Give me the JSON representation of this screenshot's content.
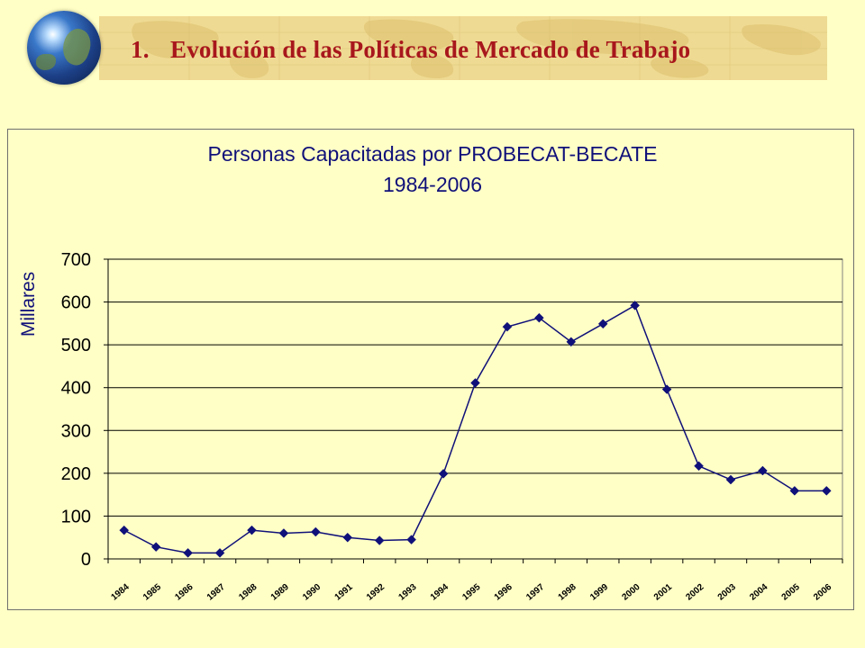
{
  "slide": {
    "title_number": "1.",
    "title_text": "Evolución de las Políticas de Mercado de Trabajo"
  },
  "colors": {
    "background": "#FFFFC6",
    "title": "#A8171C",
    "chart_text": "#10107A",
    "line": "#10107A",
    "banner": "#EFDA93"
  },
  "icons": [
    "globe-icon"
  ],
  "chart_data": {
    "type": "line",
    "title": "Personas Capacitadas por PROBECAT-BECATE",
    "subtitle": "1984-2006",
    "ylabel": "Millares",
    "xlabel": "",
    "ylim": [
      0,
      700
    ],
    "yticks": [
      0,
      100,
      200,
      300,
      400,
      500,
      600,
      700
    ],
    "grid": true,
    "legend": "none",
    "categories": [
      "1984",
      "1985",
      "1986",
      "1987",
      "1988",
      "1989",
      "1990",
      "1991",
      "1992",
      "1993",
      "1994",
      "1995",
      "1996",
      "1997",
      "1998",
      "1999",
      "2000",
      "2001",
      "2002",
      "2003",
      "2004",
      "2005",
      "2006"
    ],
    "series": [
      {
        "values": [
          67,
          28,
          14,
          14,
          67,
          60,
          63,
          50,
          43,
          45,
          199,
          411,
          542,
          563,
          507,
          549,
          592,
          396,
          217,
          185,
          206,
          159,
          159
        ]
      }
    ]
  }
}
